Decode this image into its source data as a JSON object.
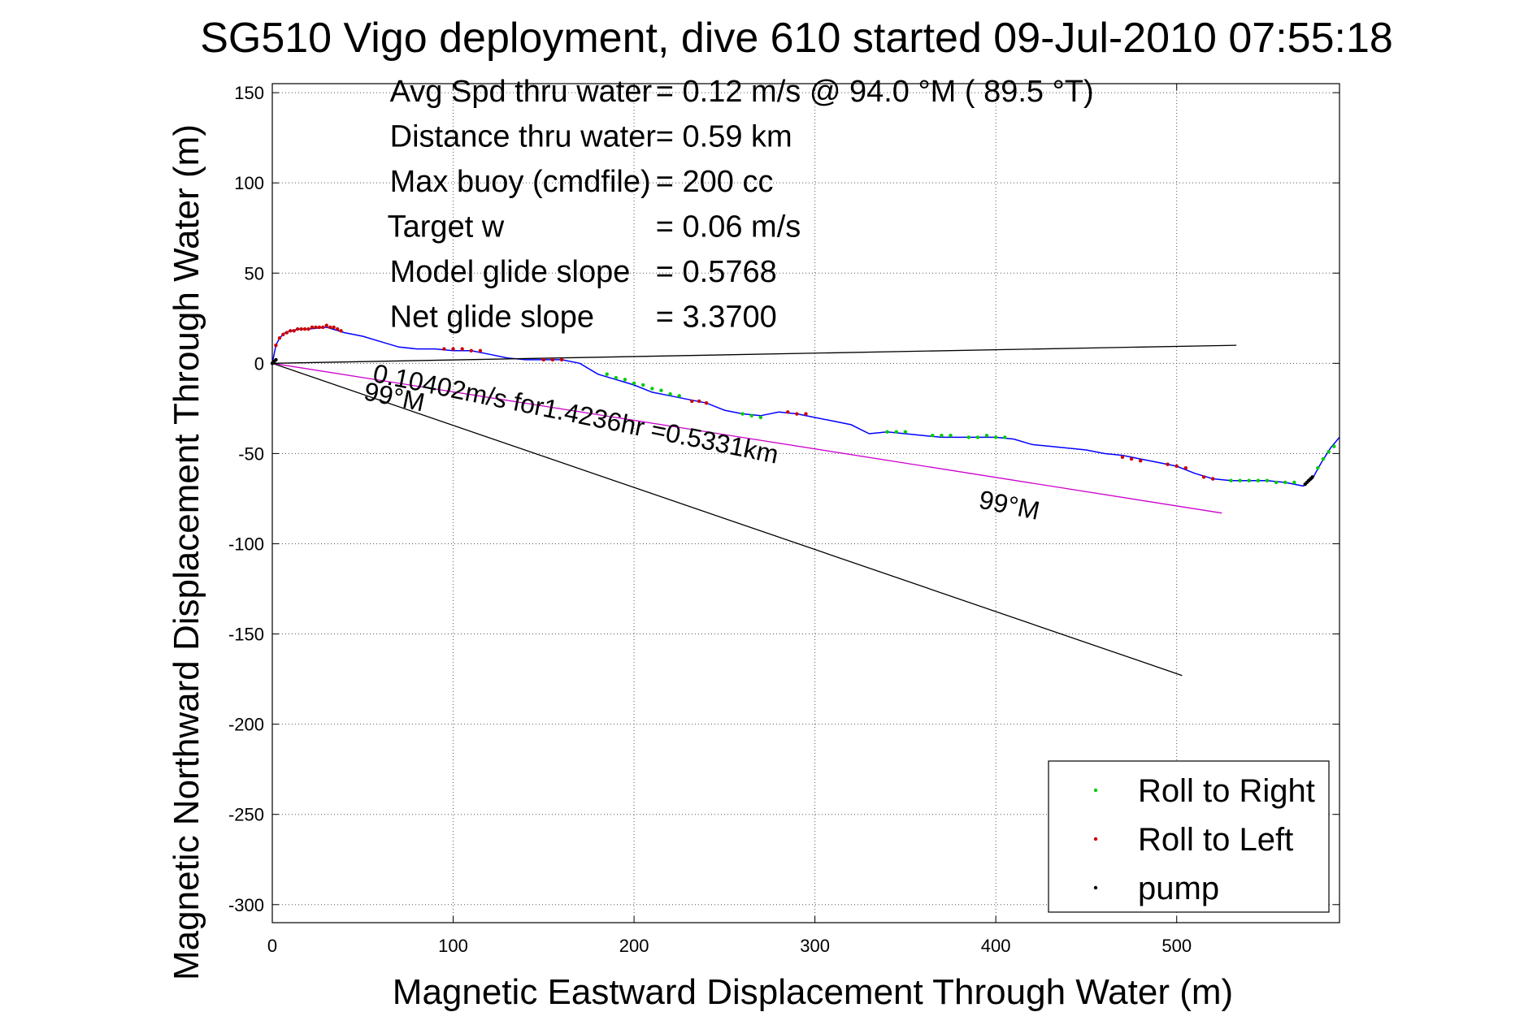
{
  "chart_data": {
    "type": "line",
    "title": "SG510 Vigo deployment, dive 610 started 09-Jul-2010 07:55:18",
    "xlabel": "Magnetic Eastward Displacement Through Water (m)",
    "ylabel": "Magnetic Northward Displacement Through Water (m)",
    "xlim": [
      0,
      590
    ],
    "ylim": [
      -310,
      155
    ],
    "xticks": [
      0,
      100,
      200,
      300,
      400,
      500
    ],
    "yticks": [
      150,
      100,
      50,
      0,
      -50,
      -100,
      -150,
      -200,
      -250,
      -300
    ],
    "grid": true,
    "stats": [
      {
        "label": "Avg Spd thru water",
        "value": "=  0.12 m/s @  94.0 °M ( 89.5 °T)"
      },
      {
        "label": "Distance thru water",
        "value": "=  0.59 km"
      },
      {
        "label": "Max buoy (cmdfile)",
        "value": "= 200 cc"
      },
      {
        "label": "Target w",
        "value": "= 0.06 m/s"
      },
      {
        "label": "Model glide slope",
        "value": "= 0.5768"
      },
      {
        "label": "Net glide slope",
        "value": "= 3.3700"
      }
    ],
    "annotations": [
      {
        "text": "0.10402m/s for1.4236hr =0.5331km",
        "x": 55,
        "y": -10
      },
      {
        "text": "99°M",
        "x": 50,
        "y": -20
      },
      {
        "text": "99°M",
        "x": 390,
        "y": -80
      }
    ],
    "series": [
      {
        "name": "track",
        "color": "#0000ff",
        "x": [
          0,
          1,
          2,
          4,
          7,
          10,
          15,
          20,
          30,
          40,
          50,
          60,
          70,
          80,
          90,
          100,
          110,
          120,
          130,
          140,
          150,
          160,
          170,
          180,
          190,
          200,
          210,
          220,
          230,
          240,
          250,
          260,
          270,
          280,
          290,
          300,
          310,
          320,
          330,
          340,
          350,
          360,
          370,
          380,
          390,
          400,
          410,
          420,
          430,
          440,
          450,
          460,
          470,
          480,
          490,
          500,
          510,
          520,
          530,
          540,
          550,
          560,
          570,
          575,
          580,
          585,
          590
        ],
        "y": [
          0,
          5,
          10,
          14,
          17,
          18,
          19,
          19,
          20,
          17,
          15,
          12,
          9,
          8,
          8,
          7,
          7,
          5,
          3,
          2,
          2,
          2,
          0,
          -6,
          -9,
          -12,
          -16,
          -18,
          -20,
          -22,
          -26,
          -28,
          -29,
          -27,
          -28,
          -30,
          -32,
          -34,
          -39,
          -38,
          -39,
          -40,
          -41,
          -41,
          -41,
          -41,
          -42,
          -45,
          -46,
          -47,
          -48,
          -50,
          -51,
          -53,
          -55,
          -57,
          -61,
          -64,
          -65,
          -65,
          -65,
          -66,
          -68,
          -64,
          -55,
          -47,
          -41
        ]
      },
      {
        "name": "Roll to Right",
        "color": "#00cc00",
        "x": [
          185,
          190,
          195,
          200,
          205,
          210,
          215,
          220,
          225,
          260,
          265,
          270,
          340,
          345,
          350,
          365,
          370,
          375,
          385,
          390,
          395,
          400,
          405,
          530,
          535,
          540,
          545,
          550,
          555,
          560,
          565,
          578,
          581,
          584,
          587
        ],
        "y": [
          -6,
          -8,
          -9,
          -11,
          -12,
          -14,
          -15,
          -17,
          -18,
          -28,
          -29,
          -30,
          -38,
          -38,
          -38,
          -40,
          -40,
          -40,
          -41,
          -41,
          -40,
          -41,
          -41,
          -65,
          -65,
          -65,
          -65,
          -65,
          -66,
          -66,
          -66,
          -58,
          -53,
          -49,
          -46
        ]
      },
      {
        "name": "Roll to Left",
        "color": "#cc0000",
        "x": [
          2,
          4,
          6,
          8,
          10,
          12,
          14,
          16,
          18,
          20,
          22,
          24,
          26,
          28,
          30,
          32,
          34,
          36,
          38,
          95,
          100,
          105,
          110,
          115,
          150,
          155,
          160,
          232,
          236,
          240,
          285,
          290,
          295,
          470,
          475,
          480,
          495,
          500,
          505,
          515,
          520
        ],
        "y": [
          10,
          14,
          16,
          17,
          18,
          18,
          19,
          19,
          19,
          19,
          20,
          20,
          20,
          20,
          21,
          20,
          20,
          19,
          18,
          8,
          8,
          8,
          7,
          7,
          2,
          2,
          2,
          -21,
          -21,
          -22,
          -27,
          -28,
          -28,
          -52,
          -53,
          -54,
          -56,
          -57,
          -58,
          -63,
          -64
        ]
      },
      {
        "name": "pump",
        "color": "#000000",
        "x": [
          0,
          1,
          2,
          571,
          572,
          573,
          574,
          575
        ],
        "y": [
          0,
          1,
          2,
          -67,
          -66,
          -65,
          -64,
          -63
        ]
      },
      {
        "name": "fit",
        "color": "#cc00cc",
        "x": [
          0,
          525
        ],
        "y": [
          0,
          -83
        ]
      },
      {
        "name": "ref-line-low",
        "color": "#000000",
        "x": [
          0,
          503
        ],
        "y": [
          0,
          -173
        ]
      },
      {
        "name": "ref-line-flat",
        "color": "#000000",
        "x": [
          0,
          533
        ],
        "y": [
          0,
          10
        ]
      }
    ],
    "legend": {
      "placement": "bottom-right",
      "entries": [
        {
          "label": "Roll to Right",
          "color": "#00cc00"
        },
        {
          "label": "Roll to Left",
          "color": "#cc0000"
        },
        {
          "label": "pump",
          "color": "#000000"
        }
      ]
    }
  }
}
